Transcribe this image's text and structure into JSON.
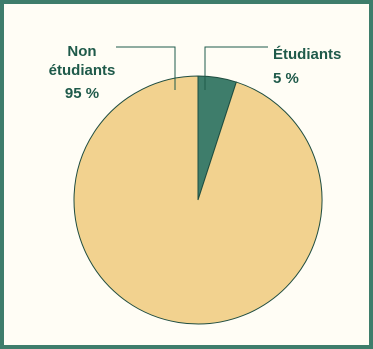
{
  "chart_data": {
    "type": "pie",
    "title": "",
    "slices": [
      {
        "label_line1": "Non",
        "label_line2": "étudiants",
        "value": 95,
        "value_label": "95 %",
        "color": "#f2d28f"
      },
      {
        "label_line1": "Étudiants",
        "label_line2": "",
        "value": 5,
        "value_label": "5 %",
        "color": "#3e7d6b"
      }
    ],
    "start_angle_deg": 0,
    "direction": "clockwise",
    "legend": "callout-labels"
  },
  "colors": {
    "frame_border": "#3e7d6b",
    "label_text": "#1f5a4a",
    "slice_outline": "#1f4d40"
  }
}
